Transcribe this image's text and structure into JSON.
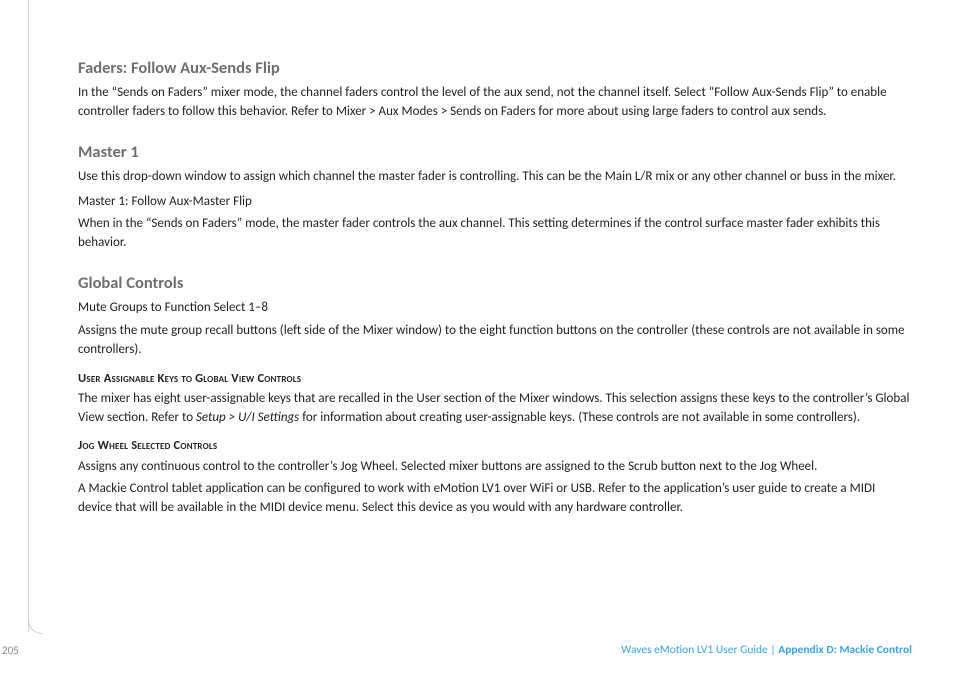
{
  "pageNumber": "205",
  "footer": {
    "guide": "Waves eMotion LV1 User Guide",
    "separator": " | ",
    "appendix": "Appendix D: Mackie Control"
  },
  "sections": {
    "faders": {
      "title": "Faders: Follow Aux-Sends Flip",
      "p1": "In the “Sends on Faders” mixer mode, the channel faders control the level of the aux send, not the channel itself. Select “Follow Aux-Sends Flip” to enable controller faders to follow this behavior. Refer to Mixer > Aux Modes > Sends on Faders for more about using large faders to control aux sends."
    },
    "master": {
      "title": "Master 1",
      "p1": "Use this drop-down window to assign which channel the master fader is controlling. This can be the Main L/R mix or any other channel or buss in the mixer.",
      "p2": "Master 1: Follow Aux-Master Flip",
      "p3": "When in the “Sends on Faders” mode, the master fader controls the aux channel. This setting determines if the control surface master fader exhibits this behavior."
    },
    "global": {
      "title": "Global Controls",
      "p1": "Mute Groups to Function Select 1–8",
      "p2": "Assigns the mute group recall buttons (left side of the Mixer window) to the eight function buttons on the controller (these controls are not available in some controllers).",
      "sub1": "User Assignable Keys to Global View Controls",
      "p3a": "The mixer has eight user-assignable keys that are recalled in the User section of the Mixer windows. This selection assigns these keys to the controller’s Global View section. Refer to ",
      "p3i": "Setup > U/I Settings",
      "p3b": " for information about creating user-assignable keys. (These controls are not available in some controllers).",
      "sub2": "Jog Wheel Selected Controls",
      "p4": "Assigns any continuous control to the controller’s Jog Wheel. Selected mixer buttons are assigned to the Scrub button next to the Jog Wheel.",
      "p5": "A Mackie Control tablet application can be configured to work with eMotion LV1 over WiFi or USB. Refer to the application’s user guide to create a MIDI device that will be available in the MIDI device menu. Select this device as you would with any hardware controller."
    }
  }
}
